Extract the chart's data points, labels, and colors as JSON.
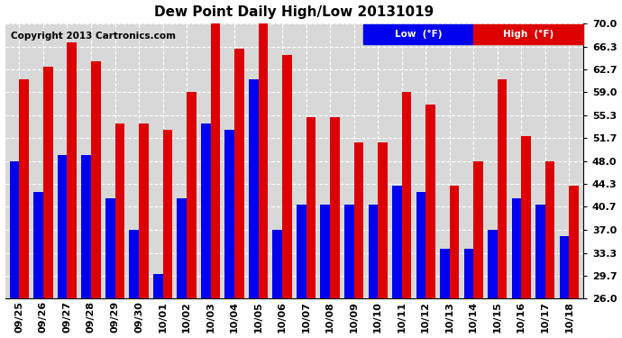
{
  "title": "Dew Point Daily High/Low 20131019",
  "copyright": "Copyright 2013 Cartronics.com",
  "background_color": "#ffffff",
  "plot_bg_color": "#d8d8d8",
  "dates": [
    "09/25",
    "09/26",
    "09/27",
    "09/28",
    "09/29",
    "09/30",
    "10/01",
    "10/02",
    "10/03",
    "10/04",
    "10/05",
    "10/06",
    "10/07",
    "10/08",
    "10/09",
    "10/10",
    "10/11",
    "10/12",
    "10/13",
    "10/14",
    "10/15",
    "10/16",
    "10/17",
    "10/18"
  ],
  "low": [
    48,
    43,
    49,
    49,
    42,
    37,
    30,
    42,
    54,
    53,
    61,
    37,
    41,
    41,
    41,
    41,
    44,
    43,
    34,
    34,
    37,
    42,
    41,
    36
  ],
  "high": [
    61,
    63,
    67,
    64,
    54,
    54,
    53,
    59,
    70,
    66,
    70,
    65,
    55,
    55,
    51,
    51,
    59,
    57,
    44,
    48,
    61,
    52,
    48,
    44
  ],
  "ylim": [
    26.0,
    70.0
  ],
  "yticks": [
    26.0,
    29.7,
    33.3,
    37.0,
    40.7,
    44.3,
    48.0,
    51.7,
    55.3,
    59.0,
    62.7,
    66.3,
    70.0
  ],
  "low_color": "#0000ee",
  "high_color": "#dd0000",
  "grid_color": "#ffffff",
  "bar_width": 0.4,
  "figsize": [
    6.9,
    3.75
  ],
  "dpi": 100
}
